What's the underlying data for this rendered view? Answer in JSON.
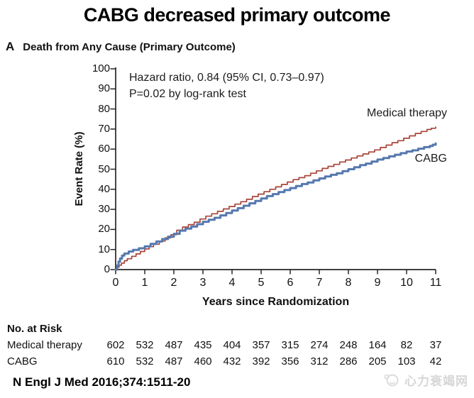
{
  "title": "CABG decreased primary outcome",
  "panel": {
    "label": "A",
    "heading": "Death from Any Cause (Primary Outcome)"
  },
  "annotation": {
    "line1": "Hazard ratio, 0.84 (95% CI, 0.73–0.97)",
    "line2": "P=0.02 by log-rank test"
  },
  "chart_data": {
    "type": "line",
    "subtype": "kaplan-meier-step",
    "title": "Death from Any Cause (Primary Outcome)",
    "xlabel": "Years since Randomization",
    "ylabel": "Event Rate (%)",
    "xlim": [
      0,
      11
    ],
    "ylim": [
      0,
      100
    ],
    "x_ticks": [
      0,
      1,
      2,
      3,
      4,
      5,
      6,
      7,
      8,
      9,
      10,
      11
    ],
    "y_ticks": [
      0,
      10,
      20,
      30,
      40,
      50,
      60,
      70,
      80,
      90,
      100
    ],
    "grid": false,
    "legend_position": "labels-on-curves",
    "series": [
      {
        "name": "Medical therapy",
        "color": "#a8453a",
        "stroke_width": 1.7,
        "points": [
          [
            0,
            0
          ],
          [
            0.06,
            1.2
          ],
          [
            0.12,
            2.2
          ],
          [
            0.2,
            3.2
          ],
          [
            0.3,
            4.4
          ],
          [
            0.4,
            5.4
          ],
          [
            0.55,
            6.6
          ],
          [
            0.7,
            7.8
          ],
          [
            0.85,
            9
          ],
          [
            1.0,
            10.3
          ],
          [
            1.15,
            11.4
          ],
          [
            1.3,
            12.6
          ],
          [
            1.5,
            14.2
          ],
          [
            1.7,
            15.8
          ],
          [
            1.9,
            17.4
          ],
          [
            2.1,
            19.6
          ],
          [
            2.3,
            21.2
          ],
          [
            2.5,
            22.4
          ],
          [
            2.7,
            23.6
          ],
          [
            2.9,
            25.2
          ],
          [
            3.1,
            26.6
          ],
          [
            3.3,
            27.8
          ],
          [
            3.5,
            29
          ],
          [
            3.7,
            30.2
          ],
          [
            3.9,
            31.4
          ],
          [
            4.1,
            32.6
          ],
          [
            4.3,
            33.8
          ],
          [
            4.5,
            35
          ],
          [
            4.7,
            36.4
          ],
          [
            4.9,
            37.6
          ],
          [
            5.1,
            38.8
          ],
          [
            5.3,
            40
          ],
          [
            5.5,
            41.2
          ],
          [
            5.7,
            42.4
          ],
          [
            5.9,
            43.6
          ],
          [
            6.1,
            44.8
          ],
          [
            6.3,
            45.8
          ],
          [
            6.5,
            46.8
          ],
          [
            6.7,
            48
          ],
          [
            6.9,
            49.2
          ],
          [
            7.1,
            50.4
          ],
          [
            7.3,
            51.4
          ],
          [
            7.5,
            52.4
          ],
          [
            7.7,
            53.6
          ],
          [
            7.9,
            54.6
          ],
          [
            8.1,
            55.6
          ],
          [
            8.3,
            56.6
          ],
          [
            8.5,
            57.6
          ],
          [
            8.7,
            58.6
          ],
          [
            8.9,
            59.6
          ],
          [
            9.1,
            60.8
          ],
          [
            9.3,
            62
          ],
          [
            9.5,
            63.2
          ],
          [
            9.7,
            64.2
          ],
          [
            9.9,
            65.4
          ],
          [
            10.1,
            66.6
          ],
          [
            10.3,
            67.8
          ],
          [
            10.5,
            68.8
          ],
          [
            10.7,
            69.8
          ],
          [
            10.85,
            70.4
          ],
          [
            11,
            71
          ]
        ]
      },
      {
        "name": "CABG",
        "color": "#5578ad",
        "stroke_width": 3,
        "points": [
          [
            0,
            0
          ],
          [
            0.05,
            2
          ],
          [
            0.1,
            4
          ],
          [
            0.15,
            5.5
          ],
          [
            0.22,
            7
          ],
          [
            0.3,
            8
          ],
          [
            0.45,
            9
          ],
          [
            0.6,
            9.8
          ],
          [
            0.8,
            10.6
          ],
          [
            1.0,
            11.6
          ],
          [
            1.2,
            12.8
          ],
          [
            1.4,
            14
          ],
          [
            1.6,
            15.2
          ],
          [
            1.8,
            16.4
          ],
          [
            2.0,
            17.8
          ],
          [
            2.2,
            19.4
          ],
          [
            2.4,
            20.4
          ],
          [
            2.6,
            21.4
          ],
          [
            2.8,
            22.6
          ],
          [
            3.0,
            23.8
          ],
          [
            3.2,
            24.8
          ],
          [
            3.4,
            25.8
          ],
          [
            3.6,
            27
          ],
          [
            3.8,
            28.2
          ],
          [
            4.0,
            29.4
          ],
          [
            4.2,
            30.6
          ],
          [
            4.4,
            31.8
          ],
          [
            4.6,
            33
          ],
          [
            4.8,
            34.2
          ],
          [
            5.0,
            35.4
          ],
          [
            5.2,
            36.6
          ],
          [
            5.4,
            37.6
          ],
          [
            5.6,
            38.6
          ],
          [
            5.8,
            39.6
          ],
          [
            6.0,
            40.6
          ],
          [
            6.2,
            41.6
          ],
          [
            6.4,
            42.6
          ],
          [
            6.6,
            43.4
          ],
          [
            6.8,
            44.4
          ],
          [
            7.0,
            45.4
          ],
          [
            7.2,
            46.4
          ],
          [
            7.4,
            47.2
          ],
          [
            7.6,
            48
          ],
          [
            7.8,
            49
          ],
          [
            8.0,
            50
          ],
          [
            8.2,
            51
          ],
          [
            8.4,
            52
          ],
          [
            8.6,
            52.8
          ],
          [
            8.8,
            53.8
          ],
          [
            9.0,
            54.8
          ],
          [
            9.2,
            55.6
          ],
          [
            9.4,
            56.4
          ],
          [
            9.6,
            57.2
          ],
          [
            9.8,
            58
          ],
          [
            10.0,
            58.8
          ],
          [
            10.2,
            59.4
          ],
          [
            10.4,
            60.2
          ],
          [
            10.6,
            61
          ],
          [
            10.8,
            61.6
          ],
          [
            10.9,
            62.2
          ],
          [
            11,
            62.8
          ]
        ]
      }
    ],
    "annotations": [
      "Hazard ratio, 0.84 (95% CI, 0.73–0.97)",
      "P=0.02 by log-rank test"
    ]
  },
  "risk_table": {
    "heading": "No. at Risk",
    "rows": [
      {
        "label": "Medical therapy",
        "values": [
          "602",
          "532",
          "487",
          "435",
          "404",
          "357",
          "315",
          "274",
          "248",
          "164",
          "82",
          "37"
        ]
      },
      {
        "label": "CABG",
        "values": [
          "610",
          "532",
          "487",
          "460",
          "432",
          "392",
          "356",
          "312",
          "286",
          "205",
          "103",
          "42"
        ]
      }
    ]
  },
  "footer": {
    "citation": "N Engl J Med 2016;374:1511-20"
  },
  "watermark": {
    "text": "心力衰竭网"
  },
  "colors": {
    "medical_therapy": "#a8453a",
    "cabg": "#5578ad",
    "axis": "#262626",
    "watermark": "#d7d7d7"
  }
}
